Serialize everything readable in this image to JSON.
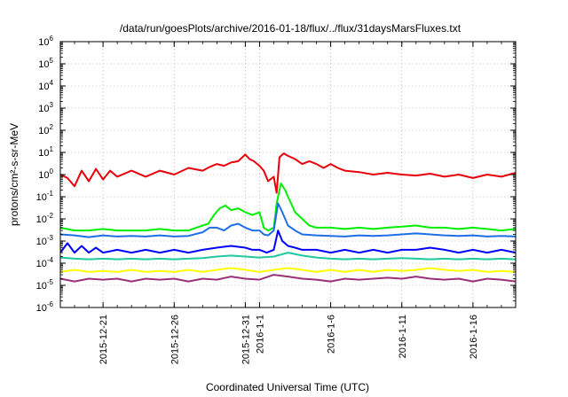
{
  "chart_data": {
    "type": "line",
    "title": "/data/run/goesPlots/archive/2016-01-18/flux/../flux/31daysMarsFluxes.txt",
    "xlabel": "Coordinated Universal Time (UTC)",
    "ylabel": "protons/cm²-s-sr-MeV",
    "yscale": "log",
    "ylim": [
      1e-06,
      1000000.0
    ],
    "xlim": [
      "2015-12-18",
      "2016-01-19"
    ],
    "grid": true,
    "x_ticks": [
      "2015-12-21",
      "2015-12-26",
      "2015-12-31",
      "2016-1-1",
      "2016-1-6",
      "2016-1-11",
      "2016-1-16"
    ],
    "x_tick_days": [
      3,
      8,
      13,
      14,
      19,
      24,
      29
    ],
    "y_ticks": [
      {
        "base": "10",
        "exp": "-6"
      },
      {
        "base": "10",
        "exp": "-5"
      },
      {
        "base": "10",
        "exp": "-4"
      },
      {
        "base": "10",
        "exp": "-3"
      },
      {
        "base": "10",
        "exp": "-2"
      },
      {
        "base": "10",
        "exp": "-1"
      },
      {
        "base": "10",
        "exp": "0"
      },
      {
        "base": "10",
        "exp": "1"
      },
      {
        "base": "10",
        "exp": "2"
      },
      {
        "base": "10",
        "exp": "3"
      },
      {
        "base": "10",
        "exp": "4"
      },
      {
        "base": "10",
        "exp": "5"
      },
      {
        "base": "10",
        "exp": "6"
      }
    ],
    "series": [
      {
        "color": "#e8000b",
        "x": [
          0,
          0.5,
          1,
          1.5,
          2,
          2.5,
          3,
          3.5,
          4,
          5,
          6,
          7,
          8,
          9,
          10,
          10.5,
          11,
          11.5,
          12,
          12.5,
          13,
          13.3,
          13.6,
          14,
          14.3,
          14.6,
          15,
          15.2,
          15.4,
          15.7,
          16,
          16.5,
          17,
          17.5,
          18,
          18.5,
          19,
          19.5,
          20,
          21,
          22,
          23,
          24,
          25,
          26,
          27,
          28,
          29,
          30,
          31,
          32
        ],
        "y": [
          1.0,
          0.7,
          0.3,
          1.5,
          0.5,
          1.8,
          0.6,
          1.5,
          0.8,
          1.5,
          0.8,
          1.5,
          1.0,
          2.0,
          1.5,
          2.2,
          3.0,
          2.5,
          3.5,
          4.0,
          8.0,
          5.0,
          4.0,
          2.5,
          1.5,
          0.5,
          0.8,
          0.15,
          6.0,
          9.0,
          7.0,
          5.0,
          3.0,
          4.0,
          3.0,
          2.0,
          3.0,
          2.0,
          1.5,
          1.3,
          1.0,
          1.2,
          1.0,
          0.9,
          1.1,
          0.8,
          1.0,
          0.7,
          1.0,
          0.8,
          1.2
        ]
      },
      {
        "color": "#00ee00",
        "x": [
          0,
          1,
          2,
          3,
          4,
          5,
          6,
          7,
          8,
          9,
          10,
          10.4,
          10.8,
          11.2,
          11.6,
          12,
          12.5,
          13,
          13.5,
          14,
          14.3,
          14.6,
          15,
          15.2,
          15.5,
          15.8,
          16,
          16.5,
          17,
          17.5,
          18,
          19,
          20,
          21,
          22,
          23,
          24,
          25,
          26,
          27,
          28,
          29,
          30,
          31,
          32
        ],
        "y": [
          0.004,
          0.003,
          0.003,
          0.0035,
          0.003,
          0.003,
          0.003,
          0.0035,
          0.003,
          0.003,
          0.005,
          0.006,
          0.015,
          0.03,
          0.04,
          0.025,
          0.03,
          0.02,
          0.015,
          0.02,
          0.004,
          0.003,
          0.004,
          0.05,
          0.4,
          0.2,
          0.1,
          0.02,
          0.01,
          0.005,
          0.004,
          0.004,
          0.0035,
          0.004,
          0.0035,
          0.004,
          0.0045,
          0.005,
          0.004,
          0.004,
          0.0035,
          0.004,
          0.0035,
          0.003,
          0.0035
        ]
      },
      {
        "color": "#1e6fe6",
        "x": [
          0,
          1,
          2,
          3,
          4,
          5,
          6,
          7,
          8,
          9,
          10,
          10.5,
          11,
          11.5,
          12,
          12.5,
          13,
          13.5,
          14,
          14.3,
          14.6,
          15,
          15.3,
          15.6,
          16,
          16.5,
          17,
          18,
          19,
          20,
          21,
          22,
          23,
          24,
          25,
          26,
          27,
          28,
          29,
          30,
          31,
          32
        ],
        "y": [
          0.002,
          0.0018,
          0.0015,
          0.0018,
          0.0016,
          0.0017,
          0.0016,
          0.0018,
          0.0016,
          0.0017,
          0.0025,
          0.004,
          0.004,
          0.003,
          0.005,
          0.006,
          0.004,
          0.003,
          0.003,
          0.002,
          0.0018,
          0.003,
          0.05,
          0.02,
          0.005,
          0.003,
          0.002,
          0.0018,
          0.0017,
          0.0016,
          0.0018,
          0.0017,
          0.0018,
          0.002,
          0.0022,
          0.002,
          0.0018,
          0.0017,
          0.0018,
          0.0016,
          0.0017,
          0.0016
        ]
      },
      {
        "color": "#0000ff",
        "x": [
          0,
          0.5,
          1,
          1.5,
          2,
          2.5,
          3,
          4,
          5,
          6,
          7,
          8,
          9,
          10,
          11,
          12,
          13,
          13.5,
          14,
          14.5,
          15,
          15.3,
          15.6,
          16,
          16.5,
          17,
          18,
          19,
          20,
          21,
          22,
          23,
          24,
          25,
          26,
          27,
          28,
          29,
          30,
          31,
          32
        ],
        "y": [
          0.0003,
          0.0008,
          0.0003,
          0.0006,
          0.0003,
          0.0005,
          0.0003,
          0.0004,
          0.0003,
          0.0004,
          0.0003,
          0.0004,
          0.0003,
          0.0004,
          0.0005,
          0.0006,
          0.0005,
          0.0004,
          0.0004,
          0.0003,
          0.0004,
          0.003,
          0.001,
          0.0006,
          0.0005,
          0.0004,
          0.0004,
          0.0003,
          0.0004,
          0.0003,
          0.0004,
          0.0003,
          0.0004,
          0.0004,
          0.0005,
          0.0004,
          0.0003,
          0.0004,
          0.0003,
          0.0004,
          0.0003
        ]
      },
      {
        "color": "#20c8a0",
        "x": [
          0,
          1,
          2,
          3,
          4,
          5,
          6,
          7,
          8,
          9,
          10,
          11,
          12,
          13,
          14,
          15,
          16,
          17,
          18,
          19,
          20,
          21,
          22,
          23,
          24,
          25,
          26,
          27,
          28,
          29,
          30,
          31,
          32
        ],
        "y": [
          0.00018,
          0.00016,
          0.00015,
          0.00016,
          0.00015,
          0.00016,
          0.00015,
          0.00016,
          0.00015,
          0.00016,
          0.00017,
          0.0002,
          0.00022,
          0.0002,
          0.00018,
          0.0002,
          0.0003,
          0.00022,
          0.00018,
          0.00016,
          0.00015,
          0.00016,
          0.00015,
          0.00016,
          0.00017,
          0.00016,
          0.00015,
          0.00016,
          0.00015,
          0.00016,
          0.00015,
          0.00016,
          0.00015
        ]
      },
      {
        "color": "#ffff00",
        "x": [
          0,
          1,
          2,
          3,
          4,
          5,
          6,
          7,
          8,
          9,
          10,
          11,
          12,
          13,
          14,
          15,
          16,
          17,
          18,
          19,
          20,
          21,
          22,
          23,
          24,
          25,
          26,
          27,
          28,
          29,
          30,
          31,
          32
        ],
        "y": [
          4e-05,
          5e-05,
          4e-05,
          4.5e-05,
          4e-05,
          5e-05,
          4e-05,
          4.5e-05,
          4e-05,
          5e-05,
          4e-05,
          5e-05,
          6e-05,
          5e-05,
          4e-05,
          5e-05,
          6e-05,
          5e-05,
          4e-05,
          5e-05,
          4e-05,
          5e-05,
          4e-05,
          5e-05,
          4.5e-05,
          5e-05,
          6e-05,
          5e-05,
          4.5e-05,
          5e-05,
          4e-05,
          4.5e-05,
          4e-05
        ]
      },
      {
        "color": "#9b3078",
        "x": [
          0,
          1,
          2,
          3,
          4,
          5,
          6,
          7,
          8,
          9,
          10,
          11,
          12,
          13,
          14,
          15,
          16,
          17,
          18,
          19,
          20,
          21,
          22,
          23,
          24,
          25,
          26,
          27,
          28,
          29,
          30,
          31,
          32
        ],
        "y": [
          2e-05,
          1.5e-05,
          2e-05,
          1.8e-05,
          2e-05,
          1.5e-05,
          2e-05,
          1.8e-05,
          2e-05,
          1.5e-05,
          2e-05,
          1.8e-05,
          2.5e-05,
          2e-05,
          1.8e-05,
          3e-05,
          2.5e-05,
          2e-05,
          1.8e-05,
          1.5e-05,
          2e-05,
          1.8e-05,
          2e-05,
          2.2e-05,
          2e-05,
          2.5e-05,
          2e-05,
          1.8e-05,
          2e-05,
          1.5e-05,
          2e-05,
          1.8e-05,
          1.5e-05
        ]
      }
    ]
  }
}
